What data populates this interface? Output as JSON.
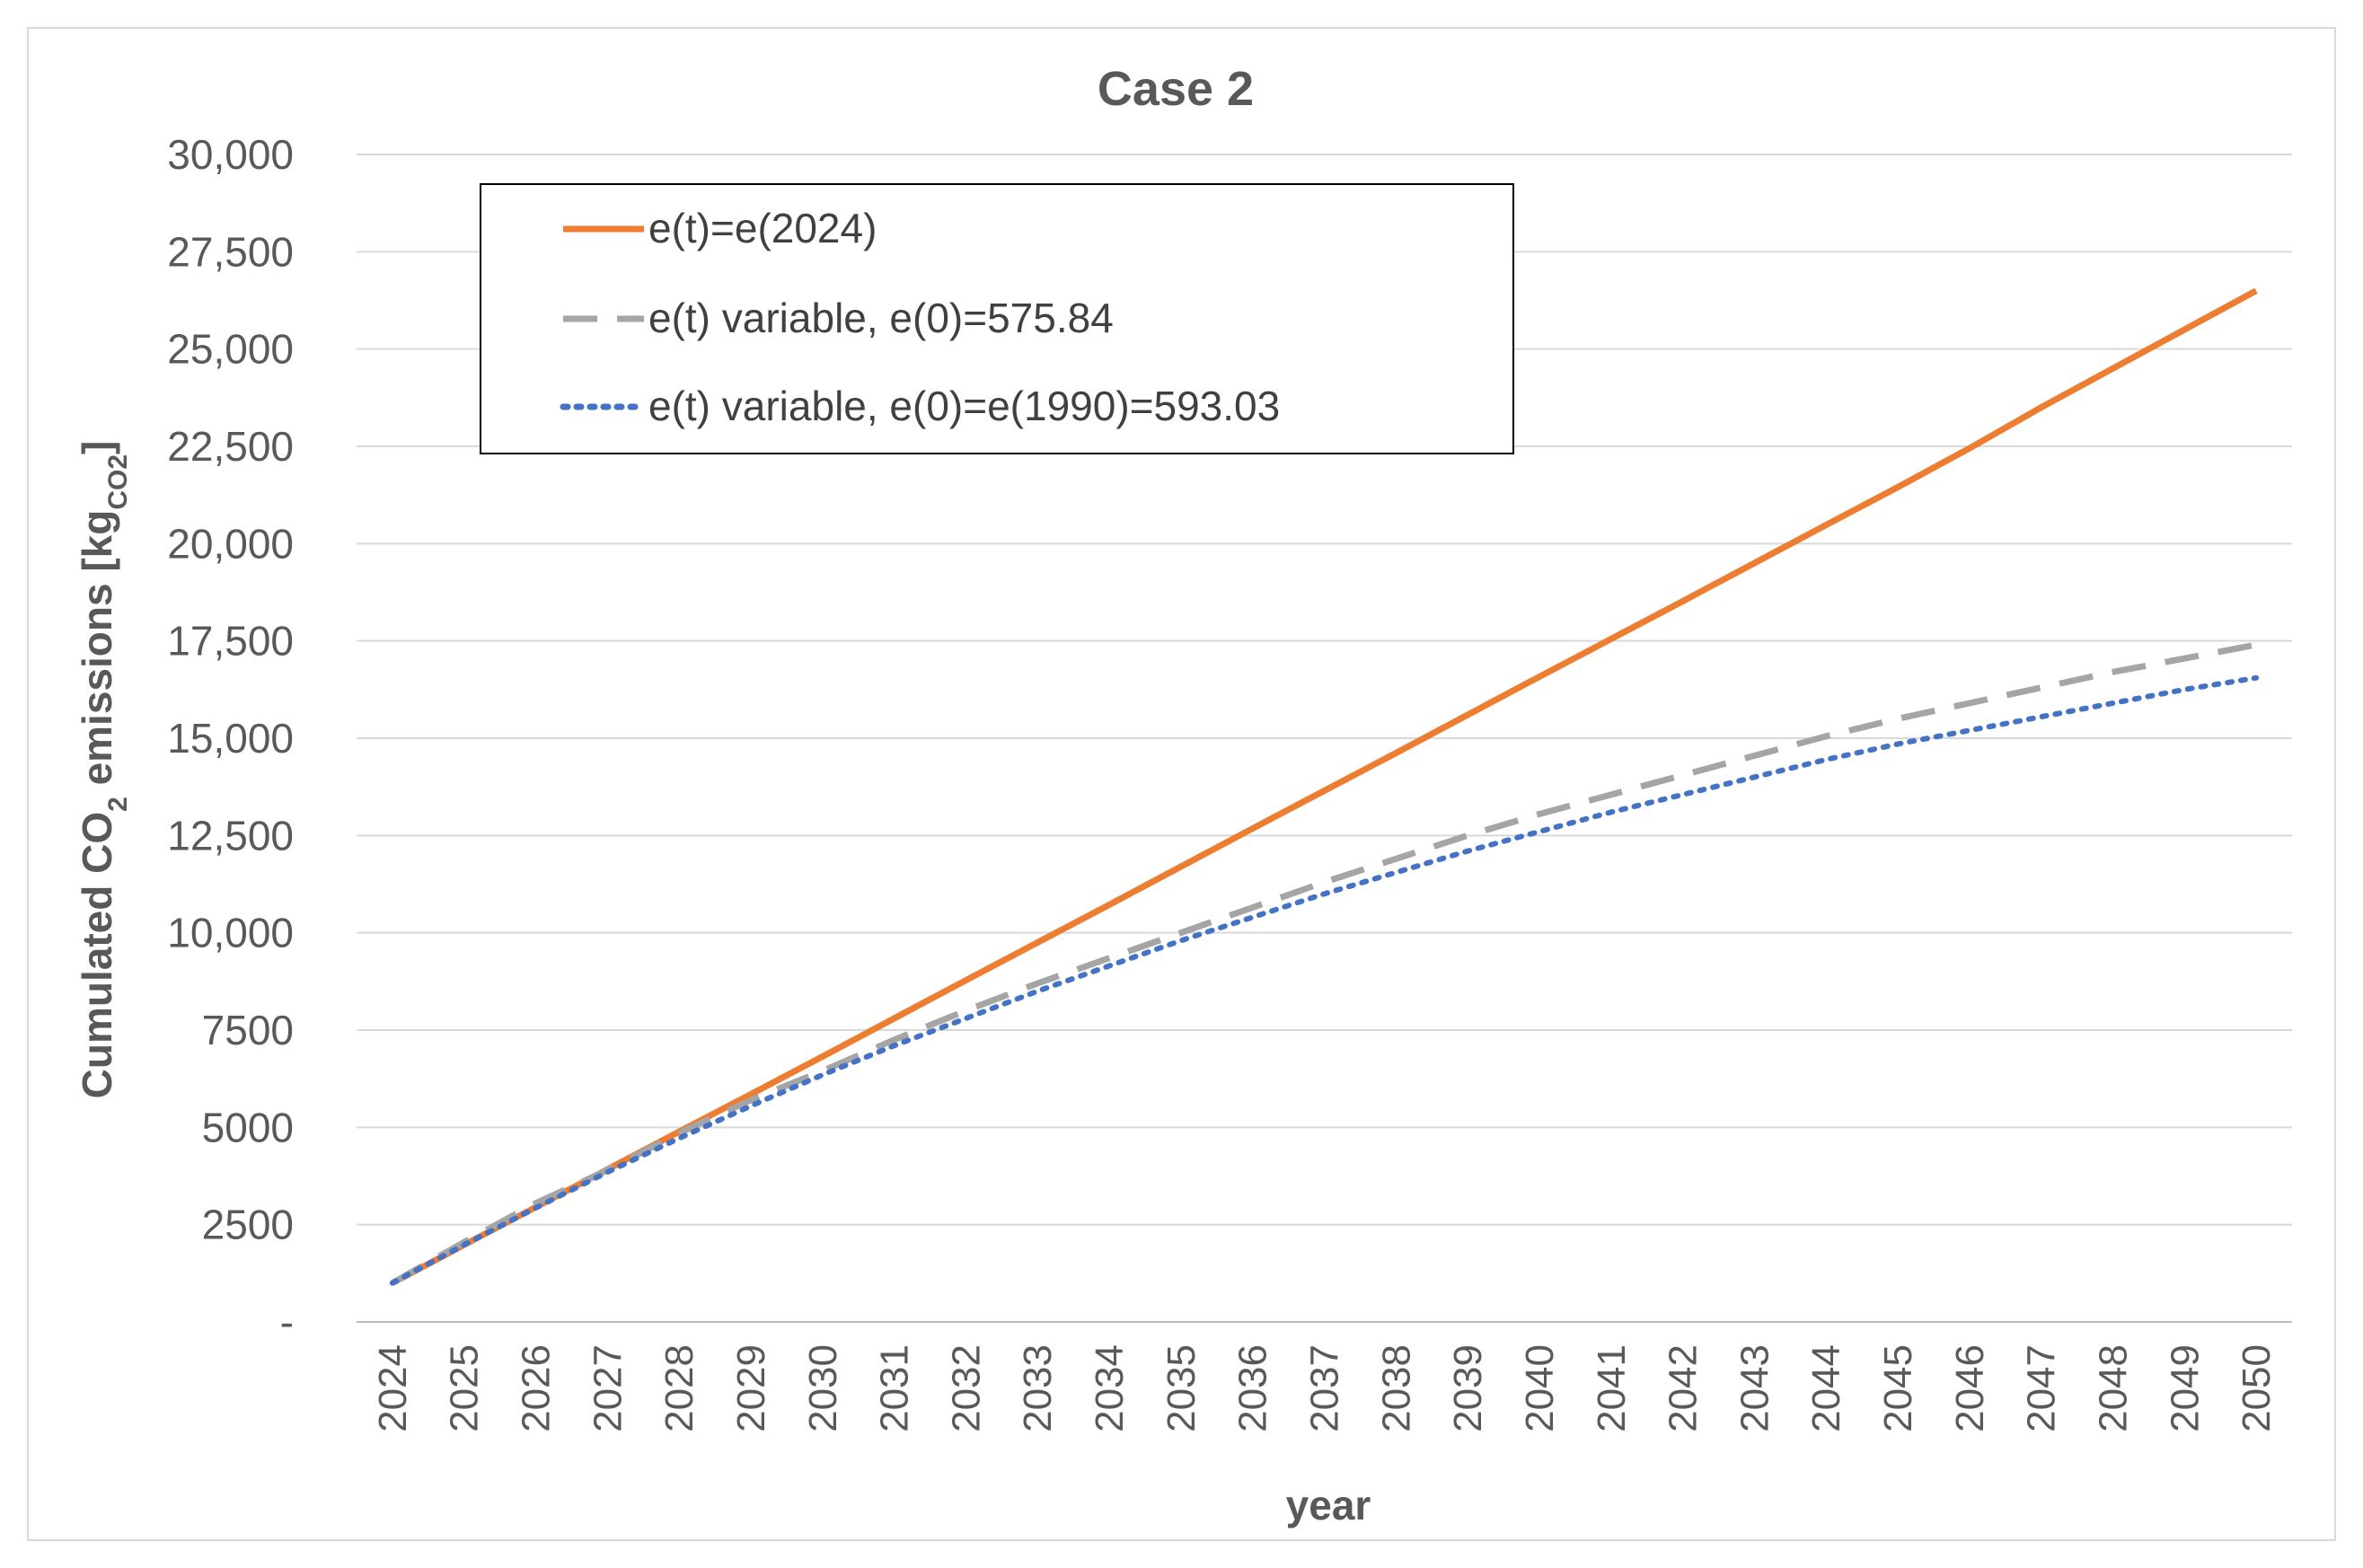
{
  "chart_data": {
    "type": "line",
    "title": "Case 2",
    "xlabel": "year",
    "ylabel_main": "Cumulated CO",
    "ylabel_sub": "2",
    "ylabel_mid": " emissions  [kg",
    "ylabel_unit_sub": "CO2",
    "ylabel_end": "]",
    "ylim": [
      0,
      30000
    ],
    "yticks": [
      0,
      2500,
      5000,
      7500,
      10000,
      12500,
      15000,
      17500,
      20000,
      22500,
      25000,
      27500,
      30000
    ],
    "ytick_labels": [
      "-",
      "2500",
      "5000",
      "7500",
      "10,000",
      "12,500",
      "15,000",
      "17,500",
      "20,000",
      "22,500",
      "25,000",
      "27,500",
      "30,000"
    ],
    "categories": [
      "2024",
      "2025",
      "2026",
      "2027",
      "2028",
      "2029",
      "2030",
      "2031",
      "2032",
      "2033",
      "2034",
      "2035",
      "2036",
      "2037",
      "2038",
      "2039",
      "2040",
      "2041",
      "2042",
      "2043",
      "2044",
      "2045",
      "2046",
      "2047",
      "2048",
      "2049",
      "2050"
    ],
    "grid": true,
    "legend_position": "top-left",
    "series": [
      {
        "name": "e(t)=e(2024)",
        "color": "#ed7d31",
        "style": "solid",
        "values": [
          1000,
          1980,
          2950,
          3920,
          4890,
          5850,
          6820,
          7800,
          8780,
          9750,
          10720,
          11700,
          12680,
          13650,
          14620,
          15600,
          16580,
          17550,
          18520,
          19500,
          20480,
          21450,
          22450,
          23500,
          24500,
          25500,
          26500
        ]
      },
      {
        "name": "e(t) variable, e(0)=575.84",
        "color": "#a5a5a5",
        "style": "dashed",
        "values": [
          1000,
          2050,
          3050,
          3900,
          4850,
          5700,
          6450,
          7250,
          8000,
          8700,
          9350,
          10000,
          10650,
          11300,
          11900,
          12500,
          13050,
          13550,
          14050,
          14550,
          15050,
          15500,
          15900,
          16300,
          16700,
          17050,
          17400
        ]
      },
      {
        "name": "e(t) variable, e(0)=e(1990)=593.03",
        "color": "#4472c4",
        "style": "dotted",
        "values": [
          1000,
          1980,
          2930,
          3850,
          4720,
          5550,
          6350,
          7100,
          7800,
          8500,
          9150,
          9800,
          10400,
          11000,
          11550,
          12100,
          12600,
          13100,
          13550,
          14000,
          14450,
          14850,
          15200,
          15550,
          15900,
          16250,
          16550
        ]
      }
    ]
  }
}
